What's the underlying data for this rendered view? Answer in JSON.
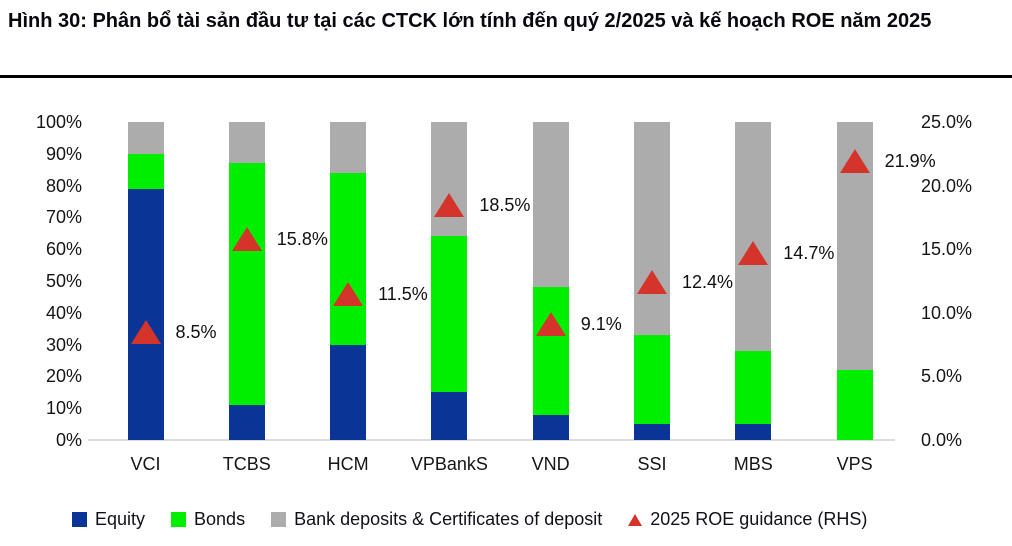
{
  "title": "Hình 30: Phân bổ tài sản đầu tư tại các CTCK lớn tính đến quý 2/2025 và kế hoạch ROE năm 2025",
  "colors": {
    "equity": "#0a3596",
    "bonds": "#00ef00",
    "deposits": "#acacac",
    "roe_marker": "#d5342a",
    "axis_line": "#dcdcdc",
    "text": "#111111"
  },
  "chart_data": {
    "type": "bar",
    "subtype": "stacked-100pct-with-scatter-markers",
    "grid": false,
    "categories": [
      "VCI",
      "TCBS",
      "HCM",
      "VPBankS",
      "VND",
      "SSI",
      "MBS",
      "VPS"
    ],
    "series": [
      {
        "name": "Equity",
        "axis": "left",
        "color": "#0a3596",
        "values": [
          79,
          11,
          30,
          15,
          8,
          5,
          5,
          0
        ]
      },
      {
        "name": "Bonds",
        "axis": "left",
        "color": "#00ef00",
        "values": [
          11,
          76,
          54,
          49,
          40,
          28,
          23,
          22
        ]
      },
      {
        "name": "Bank deposits & Certificates of deposit",
        "axis": "left",
        "color": "#acacac",
        "values": [
          10,
          13,
          16,
          36,
          52,
          67,
          72,
          78
        ]
      },
      {
        "name": "2025 ROE guidance (RHS)",
        "axis": "right",
        "marker": "triangle",
        "color": "#d5342a",
        "values": [
          8.5,
          15.8,
          11.5,
          18.5,
          9.1,
          12.4,
          14.7,
          21.9
        ],
        "labels": [
          "8.5%",
          "15.8%",
          "11.5%",
          "18.5%",
          "9.1%",
          "12.4%",
          "14.7%",
          "21.9%"
        ]
      }
    ],
    "left_axis": {
      "min": 0,
      "max": 100,
      "ticks": [
        "100%",
        "90%",
        "80%",
        "70%",
        "60%",
        "50%",
        "40%",
        "30%",
        "20%",
        "10%",
        "0%"
      ],
      "tick_values": [
        100,
        90,
        80,
        70,
        60,
        50,
        40,
        30,
        20,
        10,
        0
      ]
    },
    "right_axis": {
      "min": 0,
      "max": 25,
      "ticks": [
        "25.0%",
        "20.0%",
        "15.0%",
        "10.0%",
        "5.0%",
        "0.0%"
      ],
      "tick_values": [
        25,
        20,
        15,
        10,
        5,
        0
      ]
    },
    "legend": [
      {
        "label": "Equity",
        "swatch": "square",
        "color": "#0a3596"
      },
      {
        "label": "Bonds",
        "swatch": "square",
        "color": "#00ef00"
      },
      {
        "label": "Bank deposits & Certificates of deposit",
        "swatch": "square",
        "color": "#acacac"
      },
      {
        "label": "2025 ROE guidance (RHS)",
        "swatch": "triangle",
        "color": "#d5342a"
      }
    ],
    "legend_position": "bottom"
  }
}
